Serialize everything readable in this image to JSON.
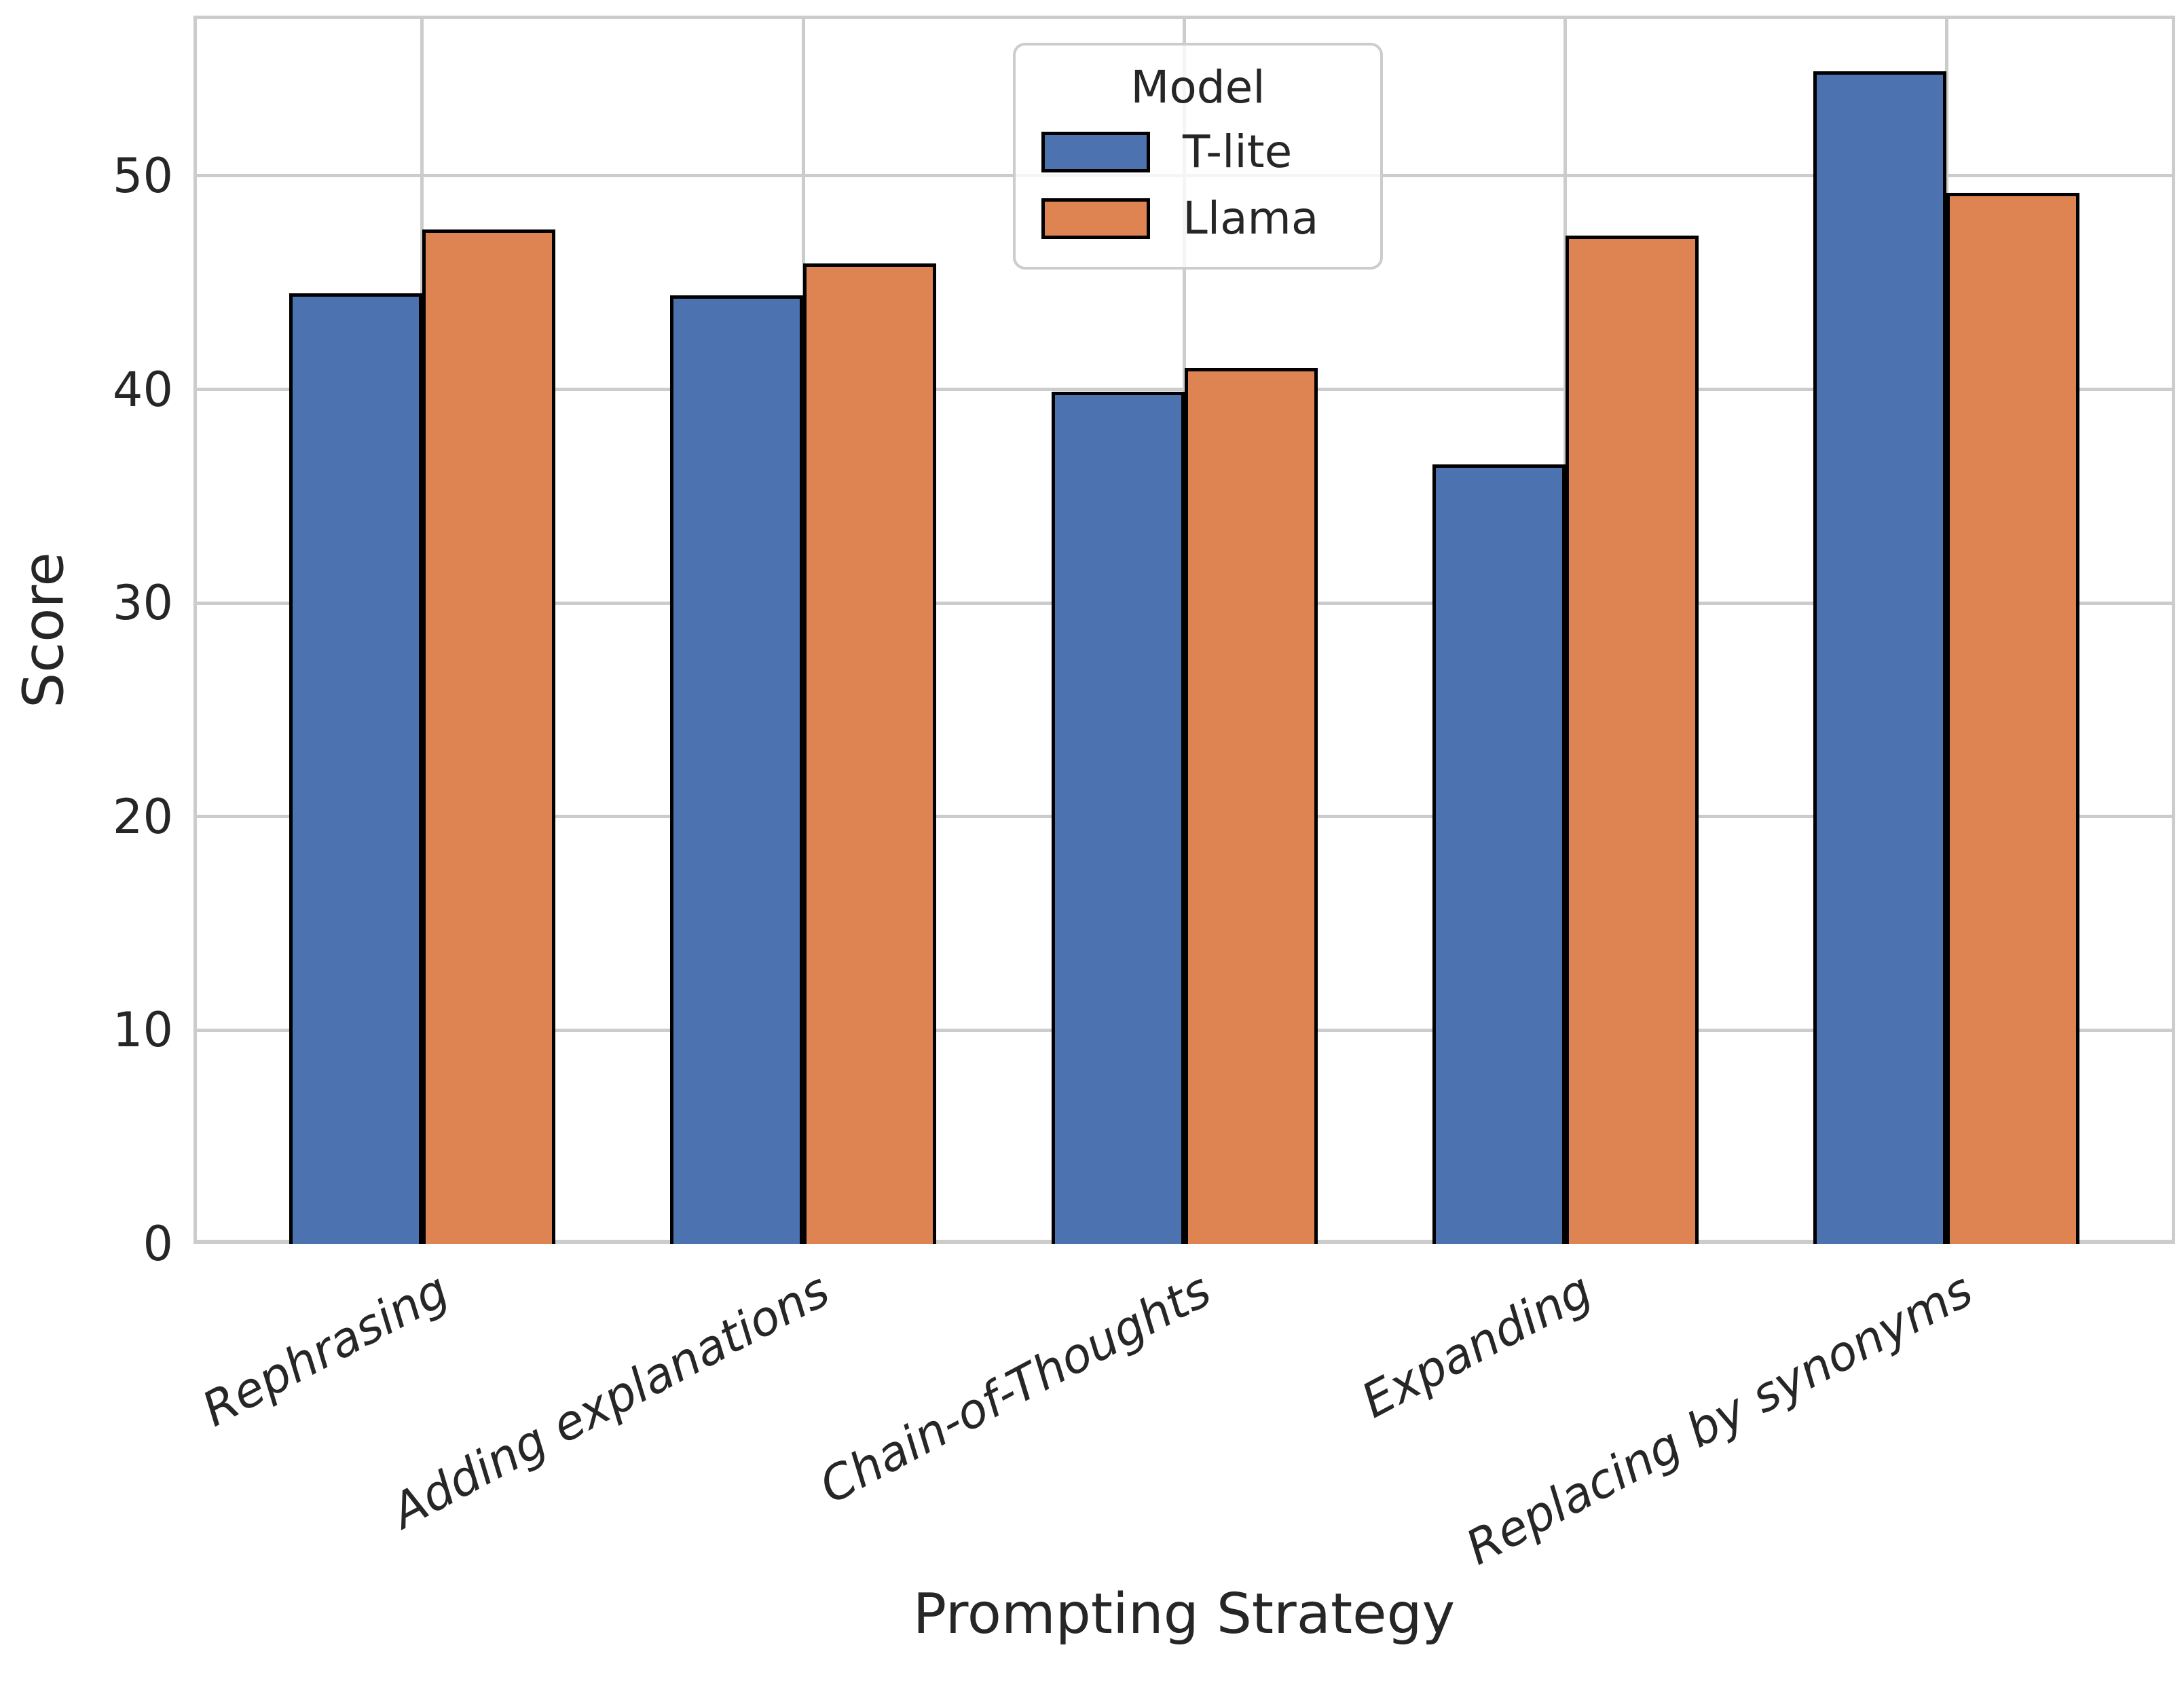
{
  "chart_data": {
    "type": "bar",
    "title": "",
    "xlabel": "Prompting Strategy",
    "ylabel": "Score",
    "categories": [
      "Rephrasing",
      "Adding explanations",
      "Chain-of-Thoughts",
      "Expanding",
      "Replacing by synonyms"
    ],
    "series": [
      {
        "name": "T-lite",
        "color": "#4C72B0",
        "values": [
          44.5,
          44.4,
          39.9,
          36.5,
          54.9
        ]
      },
      {
        "name": "Llama",
        "color": "#DD8452",
        "values": [
          47.5,
          45.9,
          41.0,
          47.2,
          49.2
        ]
      }
    ],
    "ylim": [
      0,
      57.5
    ],
    "yticks": [
      0,
      10,
      20,
      30,
      40,
      50
    ],
    "grid": "both",
    "legend": {
      "title": "Model",
      "position": "upper center"
    },
    "colors": {
      "bar_edge": "#000000",
      "grid": "#cccccc",
      "text": "#262626",
      "background": "#ffffff"
    }
  }
}
